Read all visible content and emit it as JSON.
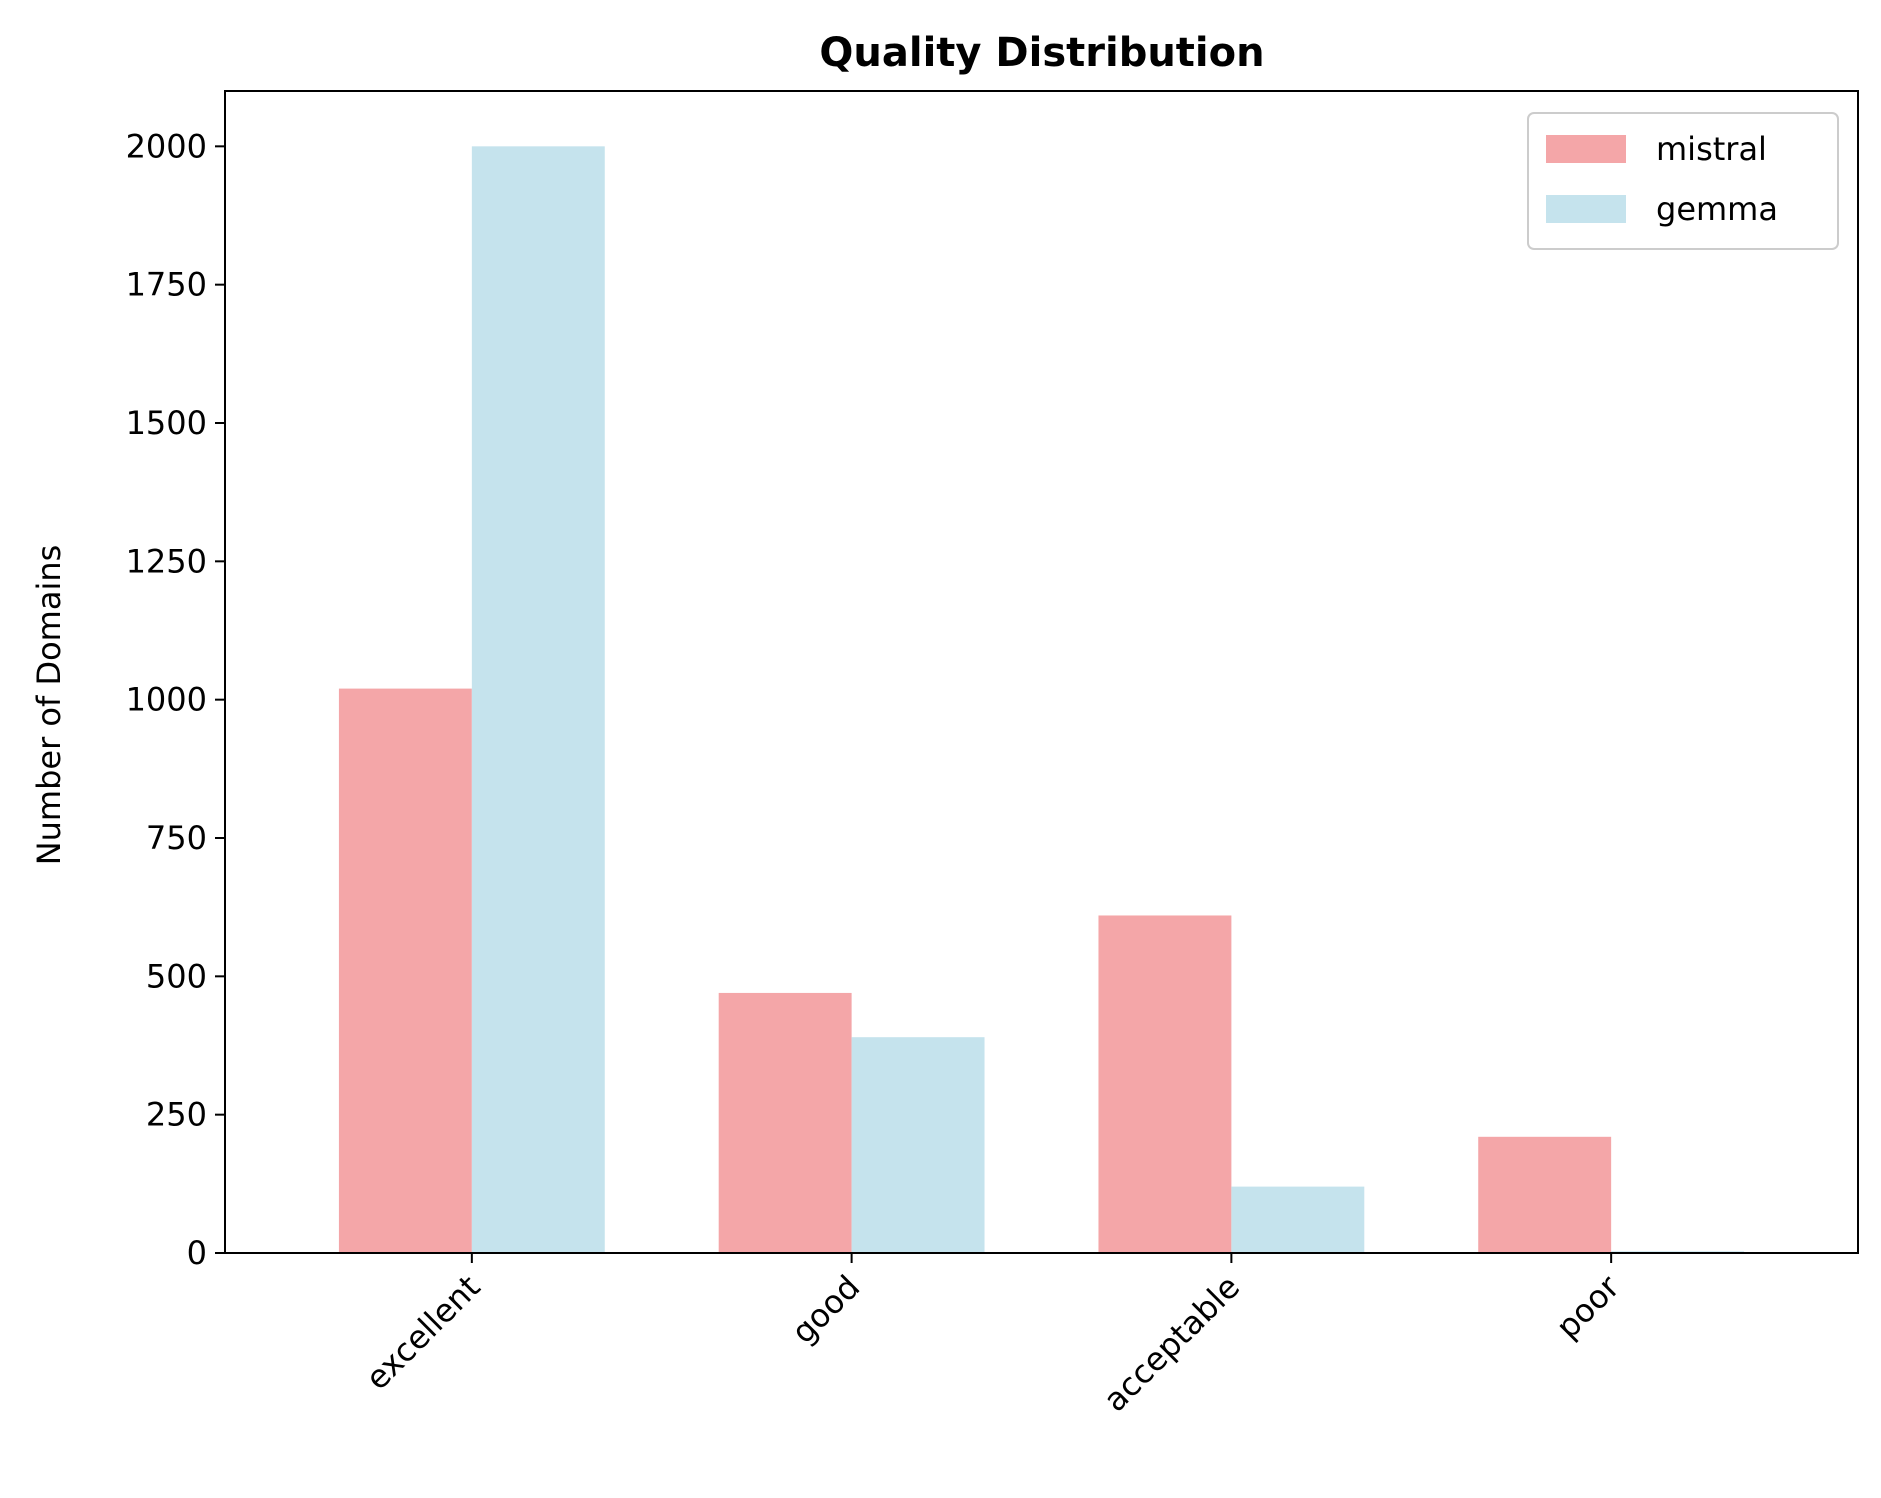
{
  "chart_data": {
    "type": "bar",
    "title": "Quality Distribution",
    "xlabel": "",
    "ylabel": "Number of Domains",
    "categories": [
      "excellent",
      "good",
      "acceptable",
      "poor"
    ],
    "series": [
      {
        "name": "mistral",
        "color": "#f4a6a8",
        "values": [
          1020,
          470,
          610,
          210
        ]
      },
      {
        "name": "gemma",
        "color": "#c5e3ed",
        "values": [
          2000,
          390,
          120,
          3
        ]
      }
    ],
    "ylim": [
      0,
      2100
    ],
    "yticks": [
      0,
      250,
      500,
      750,
      1000,
      1250,
      1500,
      1750,
      2000
    ],
    "grid": false,
    "legend_position": "top-right"
  }
}
